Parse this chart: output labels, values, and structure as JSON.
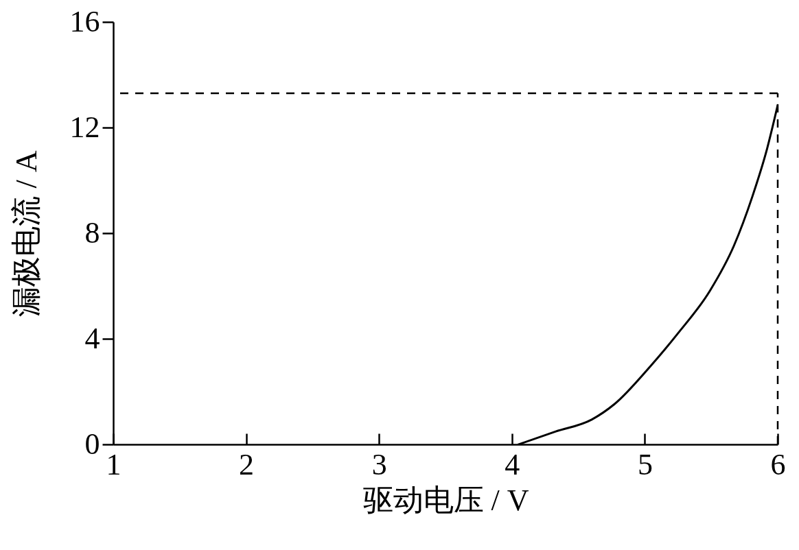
{
  "chart_data": {
    "type": "line",
    "xlabel": "驱动电压 / V",
    "ylabel": "漏极电流 / A",
    "x": [
      4.05,
      4.33,
      4.6,
      4.77,
      5.04,
      5.25,
      5.49,
      5.67,
      5.81,
      5.92,
      6.0
    ],
    "series": [
      {
        "color": "#000000",
        "values": [
          0,
          0.49,
          0.94,
          1.52,
          2.95,
          4.21,
          5.82,
          7.52,
          9.4,
          11.2,
          12.85
        ]
      }
    ],
    "xlim": [
      1,
      6
    ],
    "xticks": [
      1,
      2,
      3,
      4,
      5,
      6
    ],
    "ylim": [
      0,
      16
    ],
    "yticks": [
      0,
      4,
      8,
      12,
      16
    ],
    "grid": false,
    "marker": "none",
    "line_style": "solid",
    "ref_lines": [
      {
        "axis": "y",
        "value": 13.3,
        "line_style": "dashed",
        "color": "#000000"
      },
      {
        "axis": "x",
        "value": 6,
        "line_style": "dashed",
        "color": "#000000"
      }
    ]
  }
}
